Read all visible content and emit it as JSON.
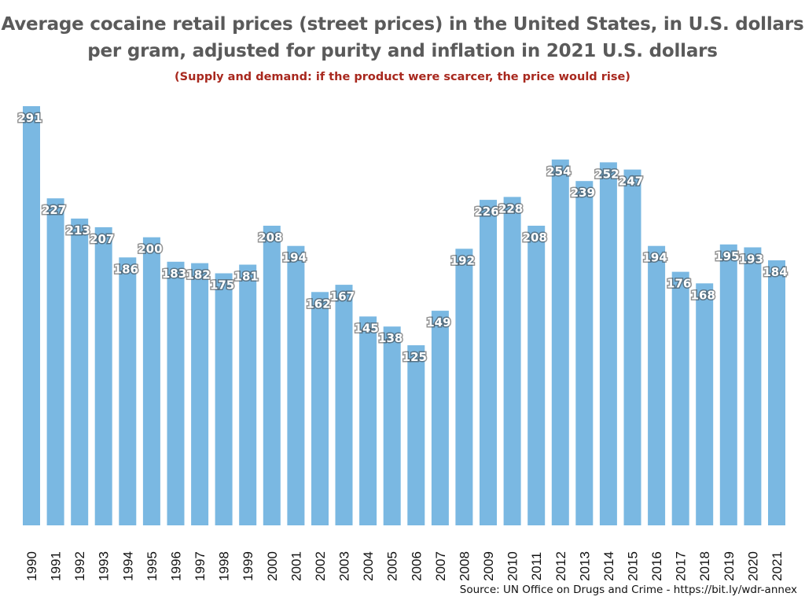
{
  "chart_data": {
    "type": "bar",
    "title": "Average cocaine retail prices (street prices) in the United States, in U.S. dollars per gram, adjusted for purity and inflation in 2021 U.S. dollars",
    "title_lines": [
      "Average cocaine retail prices (street prices) in the United States, in U.S. dollars",
      "per gram, adjusted for purity and inflation in 2021 U.S. dollars"
    ],
    "subtitle": "(Supply and demand: if the product were scarcer, the price would rise)",
    "xlabel": "",
    "ylabel": "",
    "ylim": [
      0,
      291
    ],
    "grid": false,
    "legend": null,
    "bar_color": "#7ab8e2",
    "subtitle_color": "#a8281e",
    "title_color": "#5a5a5a",
    "categories": [
      "1990",
      "1991",
      "1992",
      "1993",
      "1994",
      "1995",
      "1996",
      "1997",
      "1998",
      "1999",
      "2000",
      "2001",
      "2002",
      "2003",
      "2004",
      "2005",
      "2006",
      "2007",
      "2008",
      "2009",
      "2010",
      "2011",
      "2012",
      "2013",
      "2014",
      "2015",
      "2016",
      "2017",
      "2018",
      "2019",
      "2020",
      "2021"
    ],
    "values": [
      291,
      227,
      213,
      207,
      186,
      200,
      183,
      182,
      175,
      181,
      208,
      194,
      162,
      167,
      145,
      138,
      125,
      149,
      192,
      226,
      228,
      208,
      254,
      239,
      252,
      247,
      194,
      176,
      168,
      195,
      193,
      184
    ],
    "source": "Source: UN Office on Drugs and Crime - https://bit.ly/wdr-annex"
  }
}
